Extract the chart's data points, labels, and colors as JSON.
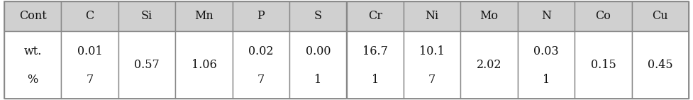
{
  "headers": [
    "Cont",
    "C",
    "Si",
    "Mn",
    "P",
    "S",
    "Cr",
    "Ni",
    "Mo",
    "N",
    "Co",
    "Cu"
  ],
  "row1_text": [
    "wt.",
    "0.01",
    "",
    "",
    "0.02",
    "0.00",
    "16.7",
    "10.1",
    "",
    "0.03",
    "",
    ""
  ],
  "row2_text": [
    "%",
    "7",
    "0.57",
    "1.06",
    "7",
    "1",
    "1",
    "7",
    "2.02",
    "1",
    "0.15",
    "0.45"
  ],
  "header_bg": "#d0d0d0",
  "cell_bg": "#ffffff",
  "border_color": "#888888",
  "text_color": "#111111",
  "header_fontsize": 11.5,
  "cell_fontsize": 11.5,
  "fig_width": 9.77,
  "fig_height": 1.41,
  "dpi": 100
}
